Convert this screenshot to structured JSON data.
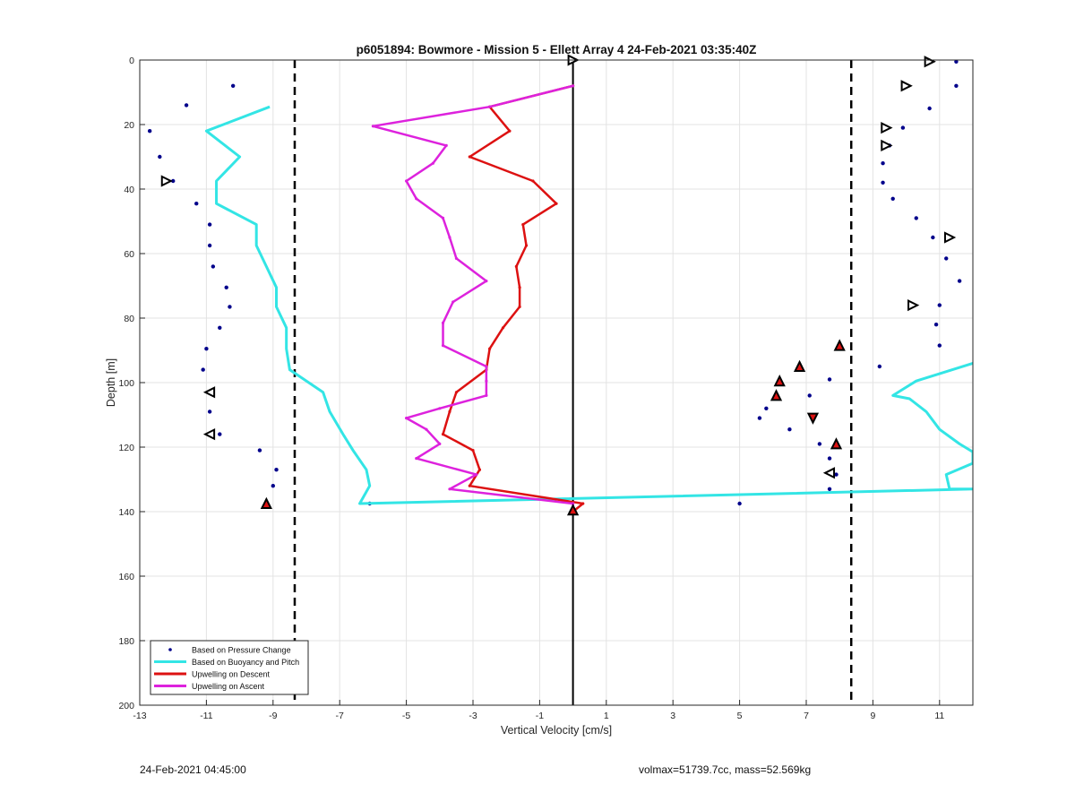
{
  "chart_data": {
    "type": "line",
    "title": "p6051894: Bowmore - Mission 5 - Ellett Array 4 24-Feb-2021 03:35:40Z",
    "xlabel": "Vertical Velocity [cm/s]",
    "ylabel": "Depth [m]",
    "xlim": [
      -13,
      12
    ],
    "ylim": [
      0,
      200
    ],
    "y_reversed": true,
    "xticks": [
      -13,
      -11,
      -9,
      -7,
      -5,
      -3,
      -1,
      1,
      3,
      5,
      7,
      9,
      11
    ],
    "yticks": [
      0,
      20,
      40,
      60,
      80,
      100,
      120,
      140,
      160,
      180,
      200
    ],
    "grid": true,
    "legend_position": "bottom-left",
    "reference_lines": {
      "solid_vertical": 0,
      "dashed_vertical": [
        -8.35,
        8.35
      ]
    },
    "series": [
      {
        "name": "Based on Pressure Change",
        "style": "dots",
        "color": "#00008b",
        "points": [
          [
            11.5,
            0.5
          ],
          [
            -10.2,
            8
          ],
          [
            11.5,
            8
          ],
          [
            -11.6,
            14
          ],
          [
            10.7,
            15
          ],
          [
            -12.7,
            22
          ],
          [
            9.9,
            21
          ],
          [
            -12.4,
            30
          ],
          [
            9.5,
            26.5
          ],
          [
            -12.0,
            37.5
          ],
          [
            9.3,
            32
          ],
          [
            -11.3,
            44.5
          ],
          [
            9.3,
            38
          ],
          [
            9.6,
            43
          ],
          [
            -10.9,
            51
          ],
          [
            10.3,
            49
          ],
          [
            -10.9,
            57.5
          ],
          [
            10.8,
            55
          ],
          [
            -10.8,
            64
          ],
          [
            11.2,
            61.5
          ],
          [
            -10.4,
            70.5
          ],
          [
            11.6,
            68.5
          ],
          [
            -10.3,
            76.5
          ],
          [
            11.0,
            76
          ],
          [
            -10.6,
            83
          ],
          [
            10.9,
            82
          ],
          [
            -11.0,
            89.5
          ],
          [
            11.0,
            88.5
          ],
          [
            -11.1,
            96
          ],
          [
            9.2,
            95
          ],
          [
            7.7,
            99
          ],
          [
            -10.9,
            103
          ],
          [
            7.1,
            104
          ],
          [
            -10.9,
            109
          ],
          [
            5.8,
            108
          ],
          [
            -10.6,
            116
          ],
          [
            5.6,
            111
          ],
          [
            6.5,
            114.5
          ],
          [
            -9.4,
            121
          ],
          [
            7.4,
            119
          ],
          [
            -8.9,
            127
          ],
          [
            7.7,
            123.5
          ],
          [
            -9.0,
            132
          ],
          [
            7.9,
            128.5
          ],
          [
            7.7,
            133
          ],
          [
            -6.1,
            137.5
          ],
          [
            -9.2,
            137.5
          ],
          [
            5.0,
            137.5
          ]
        ]
      },
      {
        "name": "Based on Buoyancy and Pitch",
        "style": "line",
        "color": "#33e5e5",
        "points": [
          [
            -9.1,
            14.5
          ],
          [
            -11.0,
            22
          ],
          [
            -10.0,
            30
          ],
          [
            -10.7,
            37.5
          ],
          [
            -10.7,
            44.5
          ],
          [
            -9.5,
            51
          ],
          [
            -9.5,
            57.5
          ],
          [
            -9.2,
            64
          ],
          [
            -8.9,
            70.5
          ],
          [
            -8.9,
            76.5
          ],
          [
            -8.6,
            83
          ],
          [
            -8.6,
            89.5
          ],
          [
            -8.5,
            96
          ],
          [
            -7.5,
            103
          ],
          [
            -7.3,
            109
          ],
          [
            -6.9,
            116
          ],
          [
            -6.6,
            121
          ],
          [
            -6.2,
            127
          ],
          [
            -6.1,
            132
          ],
          [
            -6.4,
            137.5
          ],
          [
            12,
            133
          ],
          [
            11.3,
            133
          ],
          [
            11.2,
            128.5
          ],
          [
            12,
            125
          ],
          [
            12,
            121.5
          ],
          [
            11.6,
            119
          ],
          [
            11.0,
            114.5
          ],
          [
            10.6,
            109
          ],
          [
            10.1,
            105
          ],
          [
            9.6,
            104
          ],
          [
            10.3,
            99.5
          ],
          [
            12,
            94
          ]
        ]
      },
      {
        "name": "Upwelling on Descent",
        "style": "line-markers",
        "color": "#dd1111",
        "points": [
          [
            0,
            8
          ],
          [
            -2.5,
            14.5
          ],
          [
            -1.9,
            22
          ],
          [
            -3.1,
            30
          ],
          [
            -1.2,
            37.5
          ],
          [
            -0.5,
            44.5
          ],
          [
            -1.5,
            51
          ],
          [
            -1.4,
            57.5
          ],
          [
            -1.7,
            64
          ],
          [
            -1.6,
            70.5
          ],
          [
            -1.6,
            76.5
          ],
          [
            -2.1,
            83
          ],
          [
            -2.5,
            89.5
          ],
          [
            -2.6,
            96
          ],
          [
            -3.5,
            103
          ],
          [
            -3.7,
            109
          ],
          [
            -3.9,
            116
          ],
          [
            -3.0,
            121
          ],
          [
            -2.8,
            127
          ],
          [
            -3.1,
            132
          ],
          [
            0.3,
            137.5
          ],
          [
            0,
            140
          ]
        ]
      },
      {
        "name": "Upwelling on Ascent",
        "style": "line-markers",
        "color": "#dd22dd",
        "points": [
          [
            0,
            8
          ],
          [
            -2.5,
            14.5
          ],
          [
            -6.0,
            20.5
          ],
          [
            -3.8,
            26.5
          ],
          [
            -4.2,
            32
          ],
          [
            -5.0,
            37.5
          ],
          [
            -4.7,
            43
          ],
          [
            -3.9,
            49
          ],
          [
            -3.7,
            55
          ],
          [
            -3.5,
            61.5
          ],
          [
            -2.6,
            68.5
          ],
          [
            -3.6,
            75
          ],
          [
            -3.9,
            81.5
          ],
          [
            -3.9,
            88.5
          ],
          [
            -2.6,
            95
          ],
          [
            -2.6,
            99.5
          ],
          [
            -2.6,
            104
          ],
          [
            -4.0,
            108
          ],
          [
            -5.0,
            111
          ],
          [
            -4.4,
            114.5
          ],
          [
            -4.0,
            119
          ],
          [
            -4.7,
            123.5
          ],
          [
            -2.9,
            128.5
          ],
          [
            -3.7,
            133
          ],
          [
            0,
            137.5
          ],
          [
            0,
            139.5
          ]
        ]
      }
    ],
    "annotation_markers": [
      {
        "shape": "triangle-right",
        "fill": "none",
        "points": [
          [
            0,
            0
          ],
          [
            10.7,
            0.5
          ],
          [
            10.0,
            8
          ],
          [
            9.4,
            21
          ],
          [
            9.4,
            26.5
          ],
          [
            -12.2,
            37.5
          ],
          [
            11.3,
            55
          ],
          [
            10.2,
            76
          ]
        ]
      },
      {
        "shape": "triangle-left",
        "fill": "none",
        "points": [
          [
            -10.9,
            103
          ],
          [
            -10.9,
            116
          ],
          [
            7.7,
            128
          ]
        ]
      },
      {
        "shape": "triangle-up",
        "fill": "#dd1111",
        "points": [
          [
            8.0,
            88.5
          ],
          [
            6.8,
            95
          ],
          [
            6.2,
            99.5
          ],
          [
            6.1,
            104
          ],
          [
            7.9,
            119
          ],
          [
            -9.2,
            137.5
          ],
          [
            0,
            139.5
          ]
        ]
      },
      {
        "shape": "triangle-down",
        "fill": "#dd1111",
        "points": [
          [
            7.2,
            111
          ]
        ]
      }
    ]
  },
  "footer": {
    "left": "24-Feb-2021 04:45:00",
    "right": "volmax=51739.7cc, mass=52.569kg"
  }
}
